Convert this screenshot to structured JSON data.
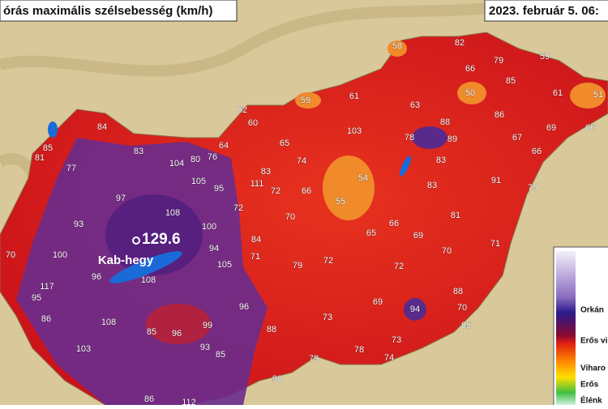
{
  "header": {
    "title": "órás maximális szélsebesség (km/h)",
    "date": "2023. február 5. 06:"
  },
  "peak": {
    "value": "129.6",
    "name": "Kab-hegy"
  },
  "stations": [
    58,
    82,
    79,
    59,
    66,
    85,
    50,
    61,
    51,
    59,
    61,
    63,
    88,
    86,
    69,
    66,
    62,
    60,
    103,
    65,
    78,
    89,
    67,
    66,
    84,
    85,
    81,
    83,
    74,
    104,
    80,
    76,
    64,
    83,
    91,
    79,
    77,
    105,
    111,
    83,
    72,
    95,
    66,
    54,
    55,
    83,
    97,
    108,
    72,
    70,
    93,
    100,
    66,
    81,
    65,
    69,
    84,
    71,
    70,
    100,
    94,
    105,
    71,
    79,
    72,
    70,
    72,
    117,
    96,
    108,
    95,
    96,
    69,
    88,
    70,
    94,
    73,
    85,
    86,
    108,
    99,
    85,
    88,
    73,
    103,
    96,
    85,
    93,
    78,
    74,
    79,
    90,
    86,
    112
  ],
  "legend": [
    "Orkán",
    "Erős vi",
    "Viharo",
    "Erős",
    "Élénk"
  ]
}
